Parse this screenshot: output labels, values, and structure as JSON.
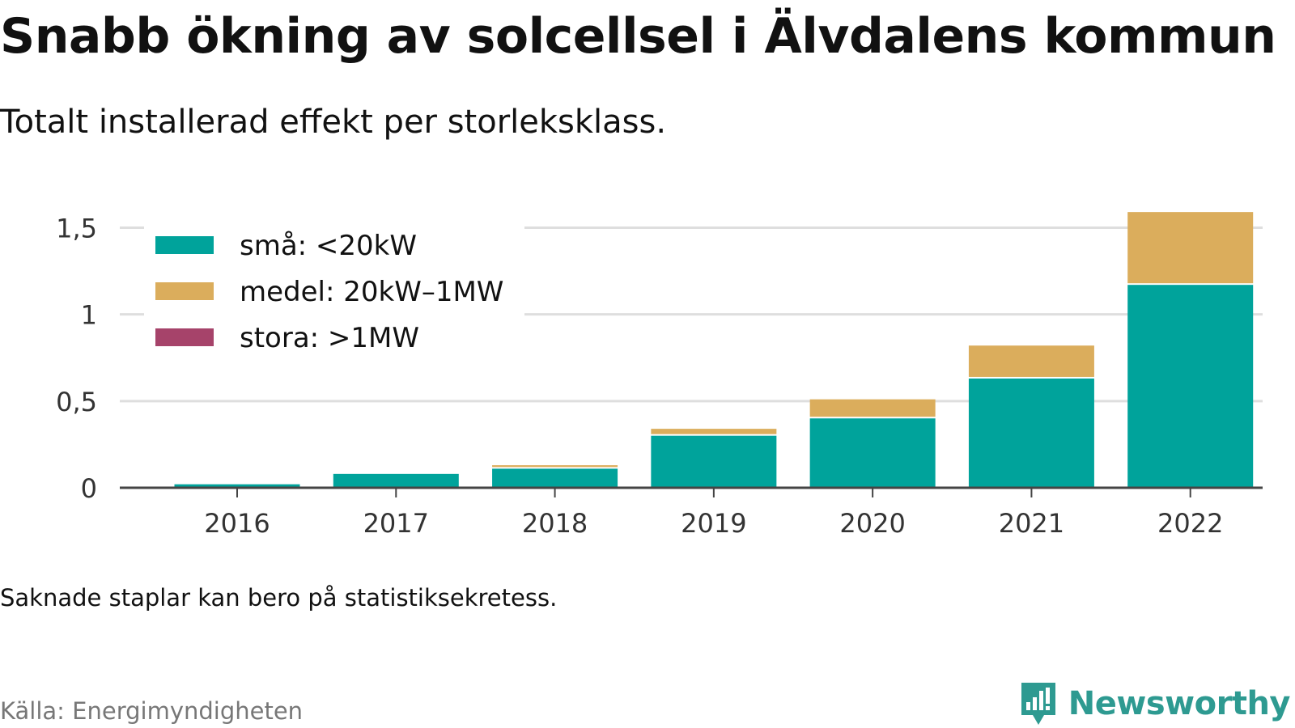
{
  "header": {
    "title": "Snabb ökning av solcellsel i Älvdalens kommun",
    "subtitle": "Totalt installerad effekt per storleksklass."
  },
  "footer": {
    "note": "Saknade staplar kan bero på statistiksekretess.",
    "source": "Källa: Energimyndigheten",
    "brand": "Newsworthy"
  },
  "colors": {
    "small": "#00a39b",
    "medium": "#dbad5c",
    "large": "#a6436a",
    "grid": "#dedede",
    "axis": "#444444",
    "brand": "#2e9a91"
  },
  "icons": {
    "brand": "newsworthy-chart-bubble-icon"
  },
  "chart_data": {
    "type": "bar",
    "stacked": true,
    "categories": [
      "2016",
      "2017",
      "2018",
      "2019",
      "2020",
      "2021",
      "2022"
    ],
    "series": [
      {
        "name": "små: <20kW",
        "color": "#00a39b",
        "values": [
          0.02,
          0.08,
          0.11,
          0.3,
          0.4,
          0.63,
          1.17
        ]
      },
      {
        "name": "medel: 20kW–1MW",
        "color": "#dbad5c",
        "values": [
          0,
          0,
          0.02,
          0.04,
          0.11,
          0.19,
          0.42
        ]
      },
      {
        "name": "stora: >1MW",
        "color": "#a6436a",
        "values": [
          0,
          0,
          0,
          0,
          0,
          0,
          0
        ]
      }
    ],
    "ylim": [
      0,
      1.6
    ],
    "yticks": [
      0,
      0.5,
      1,
      1.5
    ],
    "ytick_labels": [
      "0",
      "0,5",
      "1",
      "1,5"
    ],
    "xlabel": "",
    "ylabel": "",
    "grid": true,
    "legend_position": "top-left"
  }
}
